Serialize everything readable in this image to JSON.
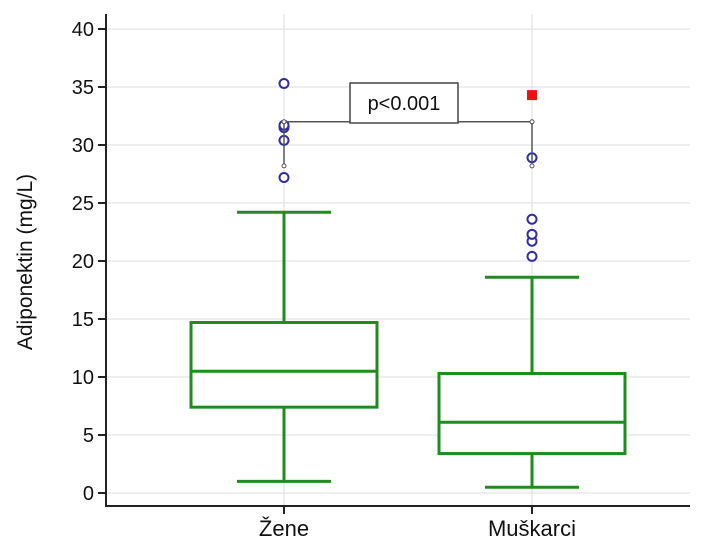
{
  "chart_data": {
    "type": "box",
    "ylabel": "Adiponektin (mg/L)",
    "ylim": [
      -1,
      41
    ],
    "yticks": [
      0,
      5,
      10,
      15,
      20,
      25,
      30,
      35,
      40
    ],
    "ytick_labels": [
      "0",
      "5",
      "10",
      "15",
      "20",
      "25",
      "30",
      "35",
      "40"
    ],
    "grid": true,
    "categories": [
      "Žene",
      "Muškarci"
    ],
    "boxes": [
      {
        "category": "Žene",
        "whisker_low": 1.0,
        "q1": 7.4,
        "median": 10.5,
        "q3": 14.7,
        "whisker_high": 24.2,
        "outliers": [
          27.2,
          30.4,
          31.5,
          31.7,
          35.3
        ],
        "far_outliers": []
      },
      {
        "category": "Muškarci",
        "whisker_low": 0.5,
        "q1": 3.4,
        "median": 6.1,
        "q3": 10.3,
        "whisker_high": 18.6,
        "outliers": [
          20.4,
          21.7,
          22.3,
          23.6,
          28.9
        ],
        "far_outliers": [
          34.3
        ]
      }
    ],
    "annotation": {
      "text": "p<0.001",
      "bracket_y": 32,
      "bracket_bottom_y": 28.2
    },
    "colors": {
      "box": "#1e8c1e",
      "outlier": "#2e2ea0",
      "far_outlier": "#ee1111",
      "grid": "#dddddd",
      "bracket": "#555555"
    }
  }
}
